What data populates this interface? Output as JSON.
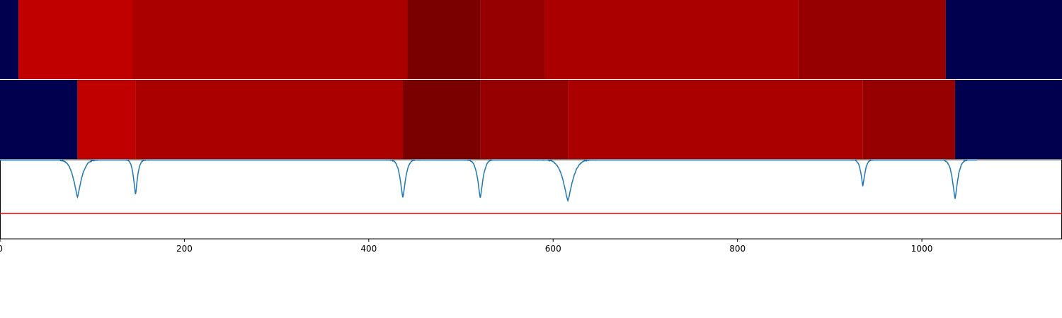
{
  "chart_data": {
    "type": "heatmap",
    "title": "",
    "xlabel": "",
    "ylabel": "",
    "xlim": [
      0,
      1152
    ],
    "x_ticks": [
      {
        "value": 0,
        "label": "0"
      },
      {
        "value": 200,
        "label": "200"
      },
      {
        "value": 400,
        "label": "400"
      },
      {
        "value": 600,
        "label": "600"
      },
      {
        "value": 800,
        "label": "800"
      },
      {
        "value": 1000,
        "label": "1000"
      }
    ],
    "segment_rows": [
      {
        "segments": [
          {
            "start": 0,
            "end": 20,
            "color": "#00004f"
          },
          {
            "start": 20,
            "end": 144,
            "color": "#c00000"
          },
          {
            "start": 144,
            "end": 442,
            "color": "#ab0000"
          },
          {
            "start": 442,
            "end": 521,
            "color": "#7a0000"
          },
          {
            "start": 521,
            "end": 591,
            "color": "#960000"
          },
          {
            "start": 591,
            "end": 866,
            "color": "#ab0000"
          },
          {
            "start": 866,
            "end": 1026,
            "color": "#960000"
          },
          {
            "start": 1026,
            "end": 1152,
            "color": "#00004f"
          }
        ]
      },
      {
        "segments": [
          {
            "start": 0,
            "end": 84,
            "color": "#00004f"
          },
          {
            "start": 84,
            "end": 147,
            "color": "#c00000"
          },
          {
            "start": 147,
            "end": 437,
            "color": "#ab0000"
          },
          {
            "start": 437,
            "end": 521,
            "color": "#7a0000"
          },
          {
            "start": 521,
            "end": 616,
            "color": "#960000"
          },
          {
            "start": 616,
            "end": 936,
            "color": "#ab0000"
          },
          {
            "start": 936,
            "end": 1036,
            "color": "#960000"
          },
          {
            "start": 1036,
            "end": 1152,
            "color": "#00004f"
          }
        ]
      }
    ],
    "signal": {
      "color": "#1f77b4",
      "x_range": [
        0,
        1060
      ],
      "y_range": [
        0,
        1
      ],
      "baseline": 1.0,
      "dips": [
        {
          "x": 84,
          "depth": 0.47,
          "width": 6
        },
        {
          "x": 147,
          "depth": 0.44,
          "width": 3
        },
        {
          "x": 437,
          "depth": 0.48,
          "width": 4
        },
        {
          "x": 521,
          "depth": 0.48,
          "width": 4
        },
        {
          "x": 616,
          "depth": 0.52,
          "width": 7
        },
        {
          "x": 936,
          "depth": 0.33,
          "width": 3
        },
        {
          "x": 1036,
          "depth": 0.49,
          "width": 4
        }
      ]
    },
    "threshold": {
      "value": 0.32,
      "color": "#ff0000"
    }
  }
}
